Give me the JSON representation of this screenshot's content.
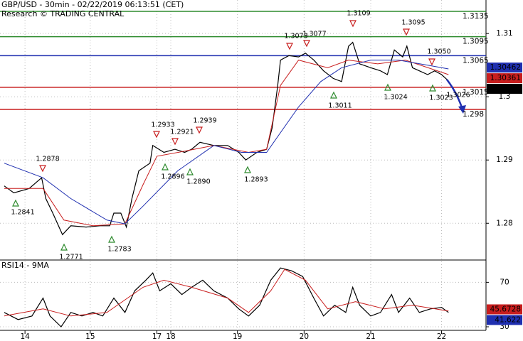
{
  "header": {
    "title": "GBP/USD - 30min - 02/22/2019 06:13:51 (CET)",
    "source": "Research © TRADING CENTRAL"
  },
  "chart_data": [
    {
      "type": "line",
      "xlim": [
        0,
        350
      ],
      "ylim": [
        1.2743,
        1.3153
      ],
      "yticks": [
        1.28,
        1.29,
        1.3,
        1.31
      ],
      "grid": true,
      "levels": [
        {
          "value": 1.3135,
          "color": "#2e8b2e"
        },
        {
          "value": 1.3095,
          "color": "#2e8b2e"
        },
        {
          "value": 1.3065,
          "color": "#1f2fb0"
        },
        {
          "value": 1.3015,
          "color": "#c81e1e"
        },
        {
          "value": 1.298,
          "color": "#c81e1e"
        }
      ],
      "price_tags": [
        {
          "value": 1.30462,
          "color": "#1f2fb0"
        },
        {
          "value": 1.30361,
          "color": "#c81e1e"
        },
        {
          "value": 1.3029,
          "color": "#000000"
        }
      ],
      "series": [
        {
          "color": "#000000",
          "x": [
            3,
            10,
            21,
            30,
            33,
            38,
            45,
            51,
            62,
            72,
            79,
            82,
            87,
            91,
            95,
            100,
            108,
            110,
            118,
            126,
            133,
            138,
            144,
            154,
            164,
            172,
            177,
            185,
            192,
            196,
            200,
            202,
            208,
            215,
            220,
            226,
            233,
            240,
            246,
            251,
            254,
            259,
            267,
            274,
            279,
            284,
            290,
            293,
            297,
            302,
            308,
            313,
            318,
            322
          ],
          "values": [
            1.2859,
            1.2848,
            1.2855,
            1.2872,
            1.2839,
            1.2816,
            1.2782,
            1.2796,
            1.2794,
            1.2796,
            1.2796,
            1.2816,
            1.2816,
            1.2794,
            1.2839,
            1.2883,
            1.2895,
            1.2923,
            1.2912,
            1.2917,
            1.2912,
            1.2917,
            1.2928,
            1.2923,
            1.2923,
            1.2912,
            1.29,
            1.2912,
            1.2917,
            1.2951,
            1.3018,
            1.3058,
            1.3065,
            1.3063,
            1.3069,
            1.3058,
            1.3041,
            1.3029,
            1.3024,
            1.308,
            1.3086,
            1.3052,
            1.3046,
            1.3041,
            1.3035,
            1.3074,
            1.3063,
            1.308,
            1.3046,
            1.3041,
            1.3035,
            1.3041,
            1.3035,
            1.3027
          ]
        },
        {
          "color": "#c81e1e",
          "x": [
            3,
            31,
            46,
            67,
            90,
            103,
            113,
            133,
            154,
            179,
            192,
            202,
            215,
            236,
            251,
            272,
            292,
            323
          ],
          "values": [
            1.2855,
            1.2855,
            1.2805,
            1.2796,
            1.2799,
            1.2861,
            1.2906,
            1.2914,
            1.2923,
            1.2912,
            1.2917,
            1.3018,
            1.3058,
            1.3046,
            1.3058,
            1.3052,
            1.3058,
            1.3035
          ]
        },
        {
          "color": "#1f2fb0",
          "x": [
            3,
            31,
            51,
            77,
            90,
            103,
            128,
            154,
            174,
            192,
            215,
            231,
            246,
            267,
            287,
            308,
            323
          ],
          "values": [
            1.2895,
            1.2872,
            1.2839,
            1.2805,
            1.2799,
            1.2827,
            1.2883,
            1.2923,
            1.2912,
            1.2912,
            1.2984,
            1.3024,
            1.3046,
            1.3058,
            1.3058,
            1.305,
            1.3044
          ]
        }
      ],
      "annotations": [
        "1.2878",
        "1.2841",
        "1.2771",
        "1.2783",
        "1.2933",
        "1.2921",
        "1.2939",
        "1.2896",
        "1.2890",
        "1.2893",
        "1.3073",
        "1.3077",
        "1.3109",
        "1.3095",
        "1.3050",
        "1.3011",
        "1.3024",
        "1.3023",
        "1.3026"
      ]
    },
    {
      "type": "line",
      "title": "RSI14 - 9MA",
      "xlim": [
        0,
        350
      ],
      "ylim": [
        26.8,
        89.4
      ],
      "yticks": [
        30,
        70
      ],
      "grid": true,
      "xticks": [
        {
          "value": 18,
          "label": "14"
        },
        {
          "value": 65,
          "label": "15"
        },
        {
          "value": 113,
          "label": "17"
        },
        {
          "value": 123,
          "label": "18"
        },
        {
          "value": 171,
          "label": "19"
        },
        {
          "value": 219,
          "label": "20"
        },
        {
          "value": 267,
          "label": "21"
        },
        {
          "value": 318,
          "label": "22"
        }
      ],
      "price_tags": [
        {
          "value": 45.6728,
          "color": "#c81e1e"
        },
        {
          "value": 41.622,
          "color": "#1f2fb0"
        }
      ],
      "series": [
        {
          "color": "#000000",
          "x": [
            3,
            13,
            23,
            31,
            36,
            44,
            51,
            59,
            67,
            74,
            82,
            90,
            97,
            105,
            110,
            115,
            123,
            131,
            138,
            146,
            154,
            164,
            172,
            179,
            187,
            195,
            202,
            210,
            218,
            226,
            233,
            241,
            249,
            254,
            259,
            267,
            274,
            282,
            287,
            295,
            302,
            310,
            318,
            323
          ],
          "values": [
            42.9,
            36.5,
            39.7,
            55.8,
            39.7,
            30,
            42.9,
            39.7,
            42.9,
            39.7,
            55.8,
            42.9,
            62.3,
            71.9,
            78.4,
            62.3,
            68.7,
            59,
            65.5,
            71.9,
            62.3,
            55.8,
            46.1,
            39.7,
            49.4,
            71.9,
            82.9,
            80.3,
            75.2,
            55.8,
            39.7,
            49.4,
            42.9,
            65.5,
            49.4,
            39.7,
            42.9,
            59,
            42.9,
            55.8,
            42.9,
            46.1,
            47.4,
            42.9
          ]
        },
        {
          "color": "#c81e1e",
          "x": [
            3,
            31,
            51,
            77,
            103,
            118,
            138,
            164,
            179,
            195,
            205,
            220,
            236,
            256,
            277,
            297,
            323
          ],
          "values": [
            39.7,
            46.1,
            39.7,
            42.9,
            65.5,
            71.9,
            65.5,
            55.8,
            42.9,
            62.3,
            81.6,
            71.9,
            46.1,
            52.6,
            46.1,
            49.4,
            44.2
          ]
        }
      ]
    }
  ]
}
